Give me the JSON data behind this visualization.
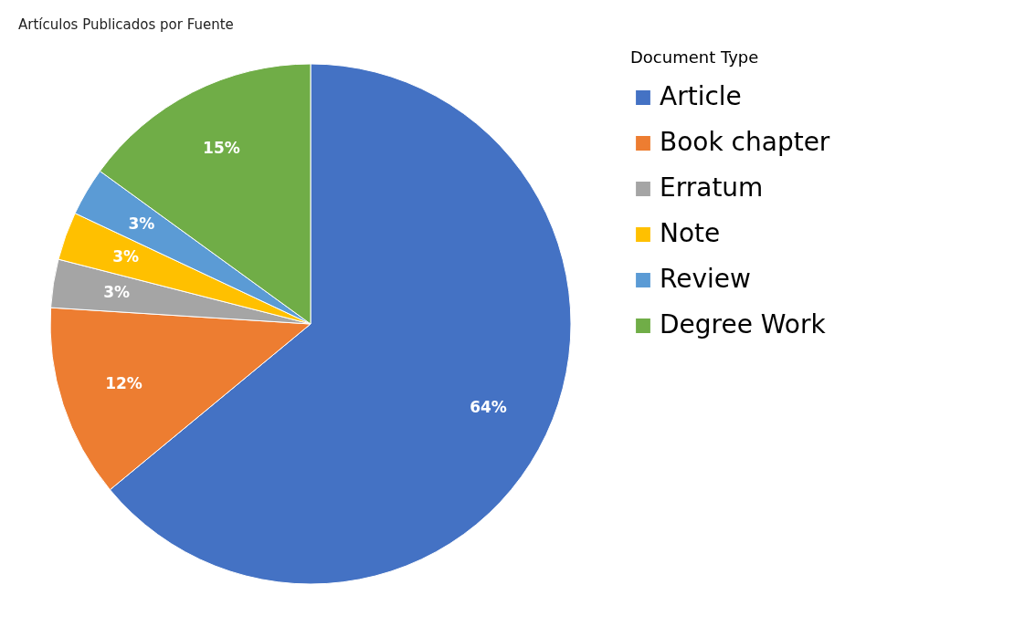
{
  "chart_data": {
    "type": "pie",
    "title": "Artículos Publicados por Fuente",
    "legend_title": "Document Type",
    "legend": "right",
    "categories": [
      "Article",
      "Book chapter",
      "Erratum",
      "Note",
      "Review",
      "Degree Work"
    ],
    "values": [
      64,
      12,
      3,
      3,
      3,
      15
    ],
    "value_labels": [
      "64%",
      "12%",
      "3%",
      "3%",
      "3%",
      "15%"
    ],
    "colors": [
      "#4472c4",
      "#ed7d31",
      "#a5a5a5",
      "#ffc000",
      "#5b9bd5",
      "#70ad47"
    ]
  }
}
